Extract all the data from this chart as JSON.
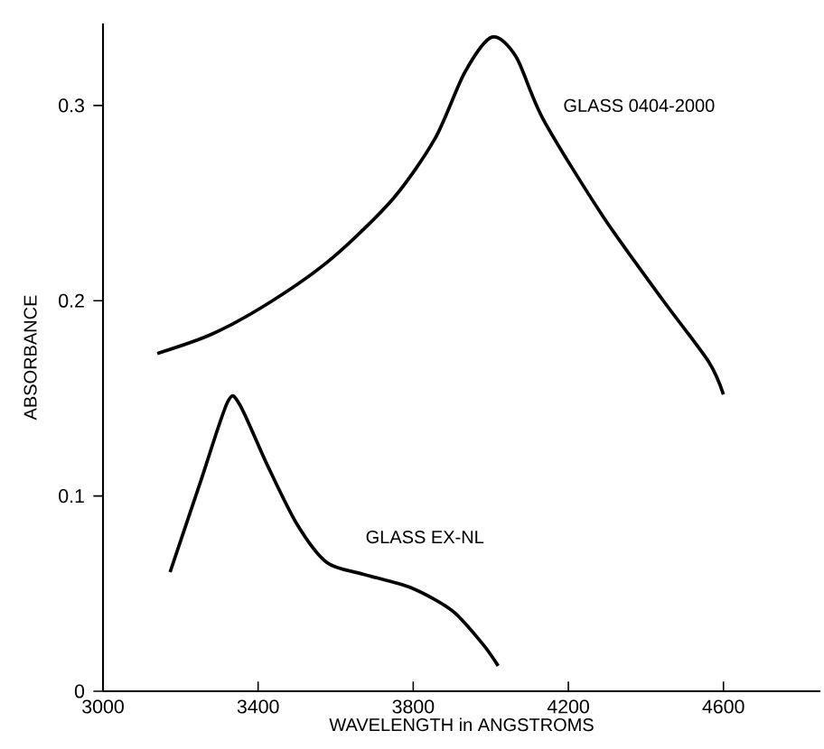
{
  "chart_data": {
    "type": "line",
    "xlabel": "WAVELENGTH in ANGSTROMS",
    "ylabel": "ABSORBANCE",
    "xlim": [
      3000,
      4850
    ],
    "ylim": [
      0,
      0.342
    ],
    "xticks": [
      3000,
      3400,
      3800,
      4200,
      4600
    ],
    "yticks": [
      0,
      0.1,
      0.2,
      0.3
    ],
    "grid": false,
    "legend": false,
    "marker": "none",
    "line_style": "solid",
    "series": [
      {
        "name": "GLASS 0404-2000",
        "color": "#000000",
        "x": [
          3140,
          3282,
          3437,
          3592,
          3747,
          3856,
          3933,
          4003,
          4065,
          4135,
          4290,
          4445,
          4561,
          4600
        ],
        "values": [
          0.173,
          0.183,
          0.2,
          0.222,
          0.252,
          0.283,
          0.317,
          0.335,
          0.325,
          0.293,
          0.243,
          0.2,
          0.169,
          0.152
        ]
      },
      {
        "name": "GLASS EX-NL",
        "color": "#000000",
        "x": [
          3173,
          3251,
          3321,
          3352,
          3421,
          3499,
          3577,
          3670,
          3794,
          3902,
          3980,
          4019
        ],
        "values": [
          0.061,
          0.107,
          0.148,
          0.147,
          0.117,
          0.086,
          0.066,
          0.06,
          0.053,
          0.041,
          0.024,
          0.013
        ]
      }
    ]
  }
}
